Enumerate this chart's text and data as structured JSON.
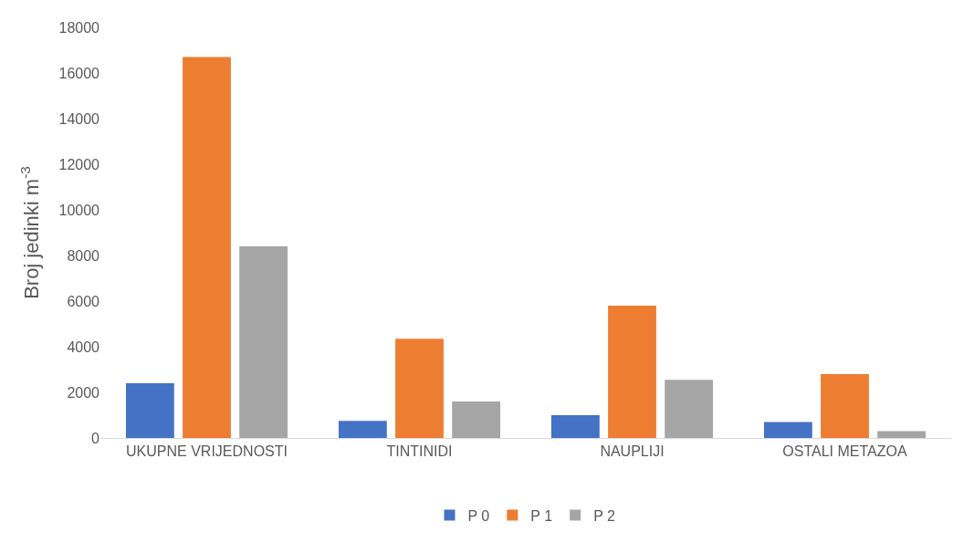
{
  "chart_data": {
    "type": "bar",
    "ylabel": "Broj jedinki m$^{-3}$",
    "categories": [
      "UKUPNE VRIJEDNOSTI",
      "TINTINIDI",
      "NAUPLIJI",
      "OSTALI METAZOA"
    ],
    "series": [
      {
        "name": "P 0",
        "color": "#4472c4",
        "values": [
          2400,
          750,
          1000,
          700
        ]
      },
      {
        "name": "P 1",
        "color": "#ed7d31",
        "values": [
          16700,
          4350,
          5800,
          2800
        ]
      },
      {
        "name": "P 2",
        "color": "#a5a5a5",
        "values": [
          8400,
          1600,
          2550,
          300
        ]
      }
    ],
    "ylim": [
      0,
      18000
    ],
    "yticks": [
      0,
      2000,
      4000,
      6000,
      8000,
      10000,
      12000,
      14000,
      16000,
      18000
    ],
    "grid": false,
    "legend": "bottom"
  }
}
